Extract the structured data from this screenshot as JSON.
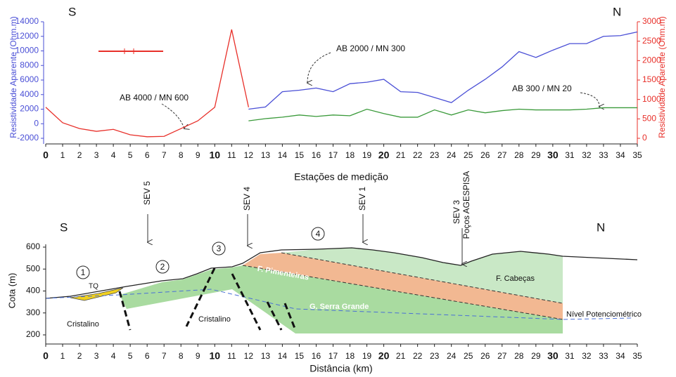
{
  "chart_data": [
    {
      "type": "line",
      "left_label": "Resistividade Aparente (Ohm.m)",
      "right_label": "Resistividade Aparente (Ohm.m)",
      "xlabel": "Estações de medição",
      "xlim": [
        0,
        35
      ],
      "xticks": [
        0,
        1,
        2,
        3,
        4,
        5,
        6,
        7,
        8,
        9,
        10,
        11,
        12,
        13,
        14,
        15,
        16,
        17,
        18,
        19,
        20,
        21,
        22,
        23,
        24,
        25,
        26,
        27,
        28,
        29,
        30,
        31,
        32,
        33,
        34,
        35
      ],
      "ylim": [
        -2000,
        14000
      ],
      "yticks": [
        -2000,
        0,
        2000,
        4000,
        6000,
        8000,
        10000,
        12000,
        14000
      ],
      "y2lim": [
        0,
        3000
      ],
      "y2ticks": [
        0,
        500,
        1000,
        1500,
        2000,
        2500,
        3000
      ],
      "annotations": [
        "S",
        "N",
        "AB 4000 / MN 600",
        "AB 2000 / MN 300",
        "AB 300 / MN 20"
      ],
      "series": [
        {
          "name": "AB 4000 / MN 600",
          "color": "#e8302a",
          "axis": "y2",
          "x": [
            0,
            1,
            2,
            3,
            4,
            5,
            6,
            7,
            8,
            9,
            10,
            11,
            12
          ],
          "values": [
            800,
            400,
            250,
            180,
            230,
            90,
            40,
            50,
            250,
            450,
            800,
            2800,
            800
          ]
        },
        {
          "name": "AB 2000 / MN 300",
          "color": "#4a4fd6",
          "x": [
            12,
            13,
            14,
            15,
            16,
            17,
            18,
            19,
            20,
            21,
            22,
            23,
            24,
            25,
            26,
            27,
            28,
            29,
            30,
            31,
            32,
            33,
            34,
            35
          ],
          "values": [
            2000,
            2300,
            4400,
            4600,
            4900,
            4400,
            5500,
            5700,
            6100,
            4400,
            4300,
            3600,
            2900,
            4600,
            6100,
            7800,
            9900,
            9100,
            10100,
            11000,
            11000,
            12000,
            12100,
            12600
          ]
        },
        {
          "name": "AB 300 / MN 20",
          "color": "#3a9a3a",
          "x": [
            12,
            13,
            14,
            15,
            16,
            17,
            18,
            19,
            20,
            21,
            22,
            23,
            24,
            25,
            26,
            27,
            28,
            29,
            30,
            31,
            32,
            33,
            34,
            35
          ],
          "values": [
            400,
            700,
            900,
            1200,
            1000,
            1200,
            1100,
            2000,
            1400,
            900,
            900,
            1900,
            1200,
            1900,
            1500,
            1800,
            2000,
            1900,
            1900,
            1900,
            2000,
            2200,
            2200,
            2200
          ]
        }
      ]
    },
    {
      "type": "section",
      "ylabel": "Cota (m)",
      "xlabel": "Distância (km)",
      "xlim": [
        0,
        35
      ],
      "xticks": [
        0,
        1,
        2,
        3,
        4,
        5,
        6,
        7,
        8,
        9,
        10,
        11,
        12,
        13,
        14,
        15,
        16,
        17,
        18,
        19,
        20,
        21,
        22,
        23,
        24,
        25,
        26,
        27,
        28,
        29,
        30,
        31,
        32,
        33,
        34,
        35
      ],
      "ylim": [
        200,
        600
      ],
      "yticks": [
        200,
        300,
        400,
        500,
        600
      ],
      "annotations": [
        "S",
        "N",
        "SEV 5",
        "SEV 4",
        "SEV 1",
        "SEV 3",
        "Poços AGESPISA",
        "1",
        "2",
        "3",
        "4",
        "TQ",
        "Cristalino",
        "Cristalino",
        "F. Pimenteiras",
        "G. Serra Grande",
        "F. Cabeças",
        "Nível Potenciométrico"
      ]
    }
  ]
}
